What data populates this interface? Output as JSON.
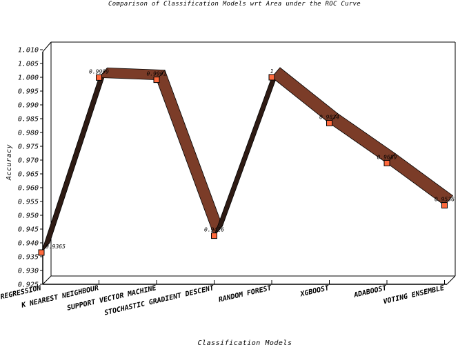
{
  "chart_data": {
    "type": "line",
    "title": "Comparison of Classification Models wrt Area under the ROC Curve",
    "xlabel": "Classification Models",
    "ylabel": "Accuracy",
    "categories": [
      "Logistic Regression",
      "K Nearest Neighbour",
      "Support Vector Machine",
      "Stochastic Gradient Descent",
      "Random Forest",
      "XGBoost",
      "AdaBoost",
      "Voting Ensemble"
    ],
    "series": [
      {
        "name": "Accuracy",
        "values": [
          0.9365,
          0.9999,
          0.9991,
          0.9426,
          1,
          0.9834,
          0.9689,
          0.9536
        ]
      }
    ],
    "data_labels": [
      "0.9365",
      "0.9999",
      "0.9991",
      "0.9426",
      "1",
      "0.9834",
      "0.9689",
      "0.9536"
    ],
    "ylim": [
      0.925,
      1.01
    ],
    "yticks": [
      "0.925",
      "0.930",
      "0.935",
      "0.940",
      "0.945",
      "0.950",
      "0.955",
      "0.960",
      "0.965",
      "0.970",
      "0.975",
      "0.980",
      "0.985",
      "0.990",
      "0.995",
      "1.000",
      "1.005",
      "1.010"
    ],
    "grid": false,
    "legend": "none",
    "colors": {
      "ribbon_top": "#7b3c28",
      "ribbon_side": "#2e1b14",
      "marker_fill": "#ff6a3d",
      "axis": "#000000",
      "background": "#ffffff"
    }
  }
}
